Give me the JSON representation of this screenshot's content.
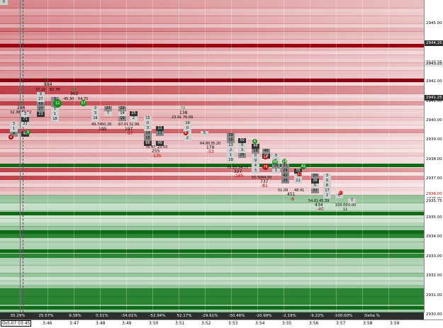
{
  "price_axis": {
    "ticks": [
      "2945.00",
      "2944.00",
      "2943.00",
      "2942.00",
      "2941.00",
      "2940.00",
      "2939.00",
      "2938.00",
      "2937.00",
      "2936.00",
      "2935.00",
      "2934.00",
      "2933.00",
      "2932.00",
      "2931.00",
      "2930.00"
    ],
    "tags": [
      {
        "text": "2944.25",
        "color": "#303030",
        "fg": "#ffffff"
      },
      {
        "text": "2943.25",
        "color": "#e0e0e0",
        "fg": "#000000"
      },
      {
        "text": "2941.25",
        "color": "#303030",
        "fg": "#ffffff"
      },
      {
        "text": "2936.00",
        "color": "#ffffff",
        "fg": "#c00000"
      },
      {
        "text": "2935.75",
        "color": "#ffffff",
        "fg": "#000000"
      }
    ]
  },
  "time_axis": {
    "first": "Oct-07 03:45",
    "ticks": [
      "3:46",
      "3:47",
      "3:48",
      "3:49",
      "3:50",
      "3:51",
      "3:52",
      "3:53",
      "3:54",
      "3:55",
      "3:56",
      "3:57",
      "3:58",
      "3:59"
    ]
  },
  "delta_bar": {
    "cells": [
      "35.29%",
      "25.57%",
      "9.39%",
      "0.51%",
      "-34.01%",
      "-52.94%",
      "52.17%",
      "-29.61%",
      "-50.46%",
      "-10.99%",
      "-2.19%",
      "-9.22%",
      "-100.00%",
      "Delta %"
    ]
  },
  "labels": [
    {
      "t": "23",
      "c": "grn"
    },
    {
      "t": "884",
      "c": ""
    },
    {
      "t": "37.22",
      "c": ""
    },
    {
      "t": "62.78",
      "c": ""
    },
    {
      "t": "34",
      "c": "grn"
    },
    {
      "t": "362",
      "c": ""
    },
    {
      "t": "45.30",
      "c": ""
    },
    {
      "t": "54.70",
      "c": ""
    },
    {
      "t": "32.38",
      "c": ""
    },
    {
      "t": "67.62",
      "c": ""
    },
    {
      "t": "244",
      "c": ""
    },
    {
      "t": "18",
      "c": "grn"
    },
    {
      "t": "49.74",
      "c": ""
    },
    {
      "t": "50.26",
      "c": ""
    },
    {
      "t": "195",
      "c": ""
    },
    {
      "t": "67.01",
      "c": ""
    },
    {
      "t": "32.99",
      "c": ""
    },
    {
      "t": "197",
      "c": ""
    },
    {
      "t": "-97",
      "c": "red"
    },
    {
      "t": "23.91",
      "c": ""
    },
    {
      "t": "76.09",
      "c": ""
    },
    {
      "t": "138",
      "c": ""
    },
    {
      "t": "72",
      "c": "grn"
    },
    {
      "t": "76.47",
      "c": ""
    },
    {
      "t": "23.53",
      "c": ""
    },
    {
      "t": "255",
      "c": ""
    },
    {
      "t": "-135",
      "c": "red"
    },
    {
      "t": "64.80",
      "c": ""
    },
    {
      "t": "35.20",
      "c": ""
    },
    {
      "t": "179",
      "c": ""
    },
    {
      "t": "-53",
      "c": "red"
    },
    {
      "t": "75.23",
      "c": ""
    },
    {
      "t": "24.77",
      "c": ""
    },
    {
      "t": "327",
      "c": ""
    },
    {
      "t": "-165",
      "c": "red"
    },
    {
      "t": "55.50",
      "c": ""
    },
    {
      "t": "44.50",
      "c": ""
    },
    {
      "t": "737",
      "c": ""
    },
    {
      "t": "-81",
      "c": "red"
    },
    {
      "t": "51.09",
      "c": ""
    },
    {
      "t": "48.91",
      "c": ""
    },
    {
      "t": "451",
      "c": ""
    },
    {
      "t": "-9",
      "c": "red"
    },
    {
      "t": "54.61",
      "c": ""
    },
    {
      "t": "45.39",
      "c": ""
    },
    {
      "t": "434",
      "c": ""
    },
    {
      "t": "-40",
      "c": "red"
    },
    {
      "t": "100.00",
      "c": ""
    },
    {
      "t": "0.00",
      "c": ""
    },
    {
      "t": "11",
      "c": ""
    }
  ],
  "cells": [
    {
      "t": "9",
      "s": "light"
    },
    {
      "t": "27",
      "s": "light"
    },
    {
      "t": "68",
      "s": "mid"
    },
    {
      "t": "27",
      "s": "mid"
    },
    {
      "t": "23",
      "s": "dark"
    },
    {
      "t": "3",
      "s": "mid"
    },
    {
      "t": "15",
      "s": "mid"
    },
    {
      "t": "5",
      "s": "light"
    },
    {
      "t": "1",
      "s": "light"
    },
    {
      "t": "18",
      "s": "light"
    },
    {
      "t": "3",
      "s": "light"
    },
    {
      "t": "71",
      "s": "dark"
    },
    {
      "t": "3",
      "s": "light"
    },
    {
      "t": "21",
      "s": "light"
    },
    {
      "t": "1",
      "s": "light"
    },
    {
      "t": "4",
      "s": "mid"
    },
    {
      "t": "40",
      "s": "dark"
    },
    {
      "t": "3",
      "s": "light"
    },
    {
      "t": "27",
      "s": "mid"
    },
    {
      "t": "3",
      "s": "light"
    },
    {
      "t": "7",
      "s": "light"
    },
    {
      "t": "16",
      "s": "light"
    },
    {
      "t": "22",
      "s": "mid"
    },
    {
      "t": "14",
      "s": "light"
    },
    {
      "t": "19",
      "s": "mid"
    },
    {
      "t": "25",
      "s": "dark"
    },
    {
      "t": "2",
      "s": "light"
    },
    {
      "t": "15",
      "s": "light"
    },
    {
      "t": "0",
      "s": "light"
    },
    {
      "t": "3",
      "s": "light"
    },
    {
      "t": "11",
      "s": "dark"
    },
    {
      "t": "13",
      "s": "mid"
    },
    {
      "t": "14",
      "s": "mid"
    },
    {
      "t": "15",
      "s": "mid"
    },
    {
      "t": "66",
      "s": "dark"
    },
    {
      "t": "49",
      "s": "dark"
    },
    {
      "t": "19",
      "s": "light"
    },
    {
      "t": "0",
      "s": "light"
    },
    {
      "t": "3",
      "s": "light"
    },
    {
      "t": "2",
      "s": "light"
    },
    {
      "t": "5",
      "s": "light"
    },
    {
      "t": "29",
      "s": "mid"
    },
    {
      "t": "15",
      "s": "mid"
    },
    {
      "t": "13",
      "s": "light"
    },
    {
      "t": "2",
      "s": "light"
    },
    {
      "t": "1",
      "s": "light"
    },
    {
      "t": "19",
      "s": "light"
    },
    {
      "t": "50",
      "s": "dark"
    },
    {
      "t": "9",
      "s": "light"
    },
    {
      "t": "3",
      "s": "light"
    },
    {
      "t": "25",
      "s": "mid"
    },
    {
      "t": "49",
      "s": "dark"
    },
    {
      "t": "19",
      "s": "mid"
    },
    {
      "t": "0",
      "s": "light"
    },
    {
      "t": "9",
      "s": "light"
    },
    {
      "t": "4",
      "s": "light"
    },
    {
      "t": "3",
      "s": "light"
    },
    {
      "t": "46",
      "s": "mid"
    },
    {
      "t": "79",
      "s": "dark"
    },
    {
      "t": "9",
      "s": "light"
    },
    {
      "t": "6",
      "s": "light"
    },
    {
      "t": "39",
      "s": "mid"
    },
    {
      "t": "1",
      "s": "light"
    },
    {
      "t": "31",
      "s": "mid"
    },
    {
      "t": "29",
      "s": "mid"
    },
    {
      "t": "42",
      "s": "mid"
    },
    {
      "t": "28",
      "s": "mid"
    },
    {
      "t": "35",
      "s": "dark"
    },
    {
      "t": "0",
      "s": "light"
    },
    {
      "t": "11",
      "s": "light"
    },
    {
      "t": "20",
      "s": "mid"
    },
    {
      "t": "26",
      "s": "dark"
    },
    {
      "t": "5",
      "s": "light"
    },
    {
      "t": "21",
      "s": "mid"
    },
    {
      "t": "3",
      "s": "light"
    },
    {
      "t": "9",
      "s": "light"
    },
    {
      "t": "8",
      "s": "light"
    },
    {
      "t": "17",
      "s": "light"
    },
    {
      "t": "2",
      "s": "light"
    },
    {
      "t": "6",
      "s": "light"
    },
    {
      "t": "7",
      "s": "light"
    },
    {
      "t": "0",
      "s": "light"
    },
    {
      "t": "0",
      "s": "light"
    }
  ],
  "bubbles": [
    {
      "t": "12",
      "c": "g"
    },
    {
      "t": "57",
      "c": "g"
    },
    {
      "t": "4",
      "c": "r"
    },
    {
      "t": "9",
      "c": "g"
    },
    {
      "t": "8",
      "c": "r"
    },
    {
      "t": "6",
      "c": "g"
    },
    {
      "t": "76",
      "c": "r"
    },
    {
      "t": "48",
      "c": "g"
    },
    {
      "t": "14",
      "c": "r"
    },
    {
      "t": "18",
      "c": "g"
    },
    {
      "t": "42",
      "c": "g"
    },
    {
      "t": "13",
      "c": "r"
    },
    {
      "t": "15",
      "c": "r"
    }
  ],
  "colors": {
    "bid": "#1f7a1f",
    "ask": "#c0282f",
    "bg_light_red": "#f2dada",
    "bg_light_green": "#dbecd7"
  }
}
